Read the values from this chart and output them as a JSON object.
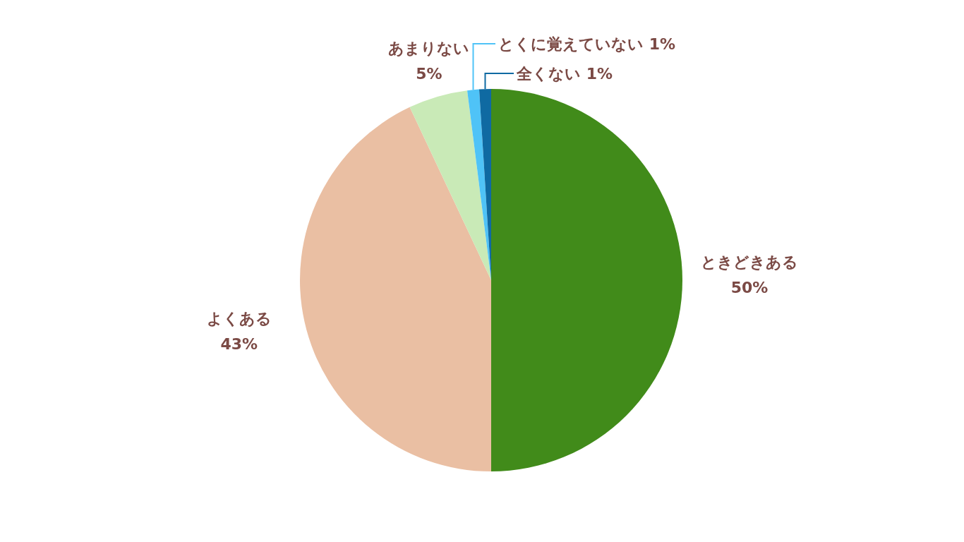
{
  "chart_data": {
    "type": "pie",
    "categories": [
      "ときどきある",
      "よくある",
      "あまりない",
      "とくに覚えていない",
      "全くない"
    ],
    "values": [
      50,
      43,
      5,
      1,
      1
    ],
    "value_labels": [
      "50%",
      "43%",
      "5%",
      "1%",
      "1%"
    ],
    "colors": [
      "#418b1a",
      "#eabfa3",
      "#c9eab7",
      "#4fc3f7",
      "#0f6aa2"
    ]
  }
}
